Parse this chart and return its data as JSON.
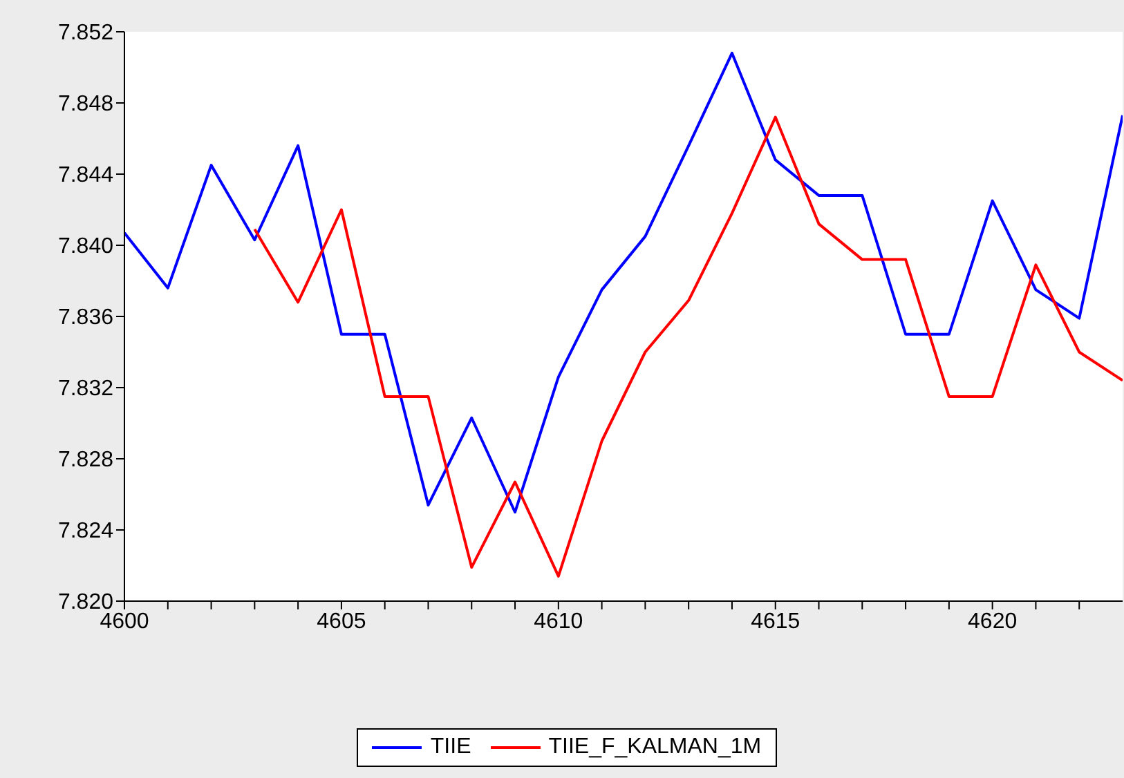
{
  "chart_data": {
    "type": "line",
    "x": [
      4600,
      4601,
      4602,
      4603,
      4604,
      4605,
      4606,
      4607,
      4608,
      4609,
      4610,
      4611,
      4612,
      4613,
      4614,
      4615,
      4616,
      4617,
      4618,
      4619,
      4620,
      4621,
      4622,
      4623
    ],
    "series": [
      {
        "name": "TIIE",
        "color": "#0000ff",
        "values": [
          7.8407,
          7.8376,
          7.8445,
          7.8403,
          7.8456,
          7.835,
          7.835,
          7.8254,
          7.8303,
          7.825,
          7.8326,
          7.8375,
          7.8405,
          7.8456,
          7.8508,
          7.8448,
          7.8428,
          7.8428,
          7.835,
          7.835,
          7.8425,
          7.8375,
          7.8359,
          7.8473
        ]
      },
      {
        "name": "TIIE_F_KALMAN_1M",
        "color": "#ff0000",
        "values": [
          null,
          null,
          null,
          7.8409,
          7.8368,
          7.842,
          7.8315,
          7.8315,
          7.8219,
          7.8267,
          7.8214,
          7.829,
          7.834,
          7.8369,
          7.8418,
          7.8472,
          7.8412,
          7.8392,
          7.8392,
          7.8315,
          7.8315,
          7.8389,
          7.834,
          7.8324
        ]
      }
    ],
    "xlim": [
      4600,
      4623
    ],
    "xticks": [
      4600,
      {
        "value": 4601,
        "label": null
      },
      {
        "value": 4602,
        "label": null
      },
      {
        "value": 4603,
        "label": null
      },
      {
        "value": 4604,
        "label": null
      },
      4605,
      {
        "value": 4606,
        "label": null
      },
      {
        "value": 4607,
        "label": null
      },
      {
        "value": 4608,
        "label": null
      },
      {
        "value": 4609,
        "label": null
      },
      4610,
      {
        "value": 4611,
        "label": null
      },
      {
        "value": 4612,
        "label": null
      },
      {
        "value": 4613,
        "label": null
      },
      {
        "value": 4614,
        "label": null
      },
      4615,
      {
        "value": 4616,
        "label": null
      },
      {
        "value": 4617,
        "label": null
      },
      {
        "value": 4618,
        "label": null
      },
      {
        "value": 4619,
        "label": null
      },
      4620,
      {
        "value": 4621,
        "label": null
      },
      {
        "value": 4622,
        "label": null
      }
    ],
    "ylim": [
      7.82,
      7.852
    ],
    "yticks": [
      {
        "value": 7.82,
        "label": "7.820"
      },
      {
        "value": 7.824,
        "label": "7.824"
      },
      {
        "value": 7.828,
        "label": "7.828"
      },
      {
        "value": 7.832,
        "label": "7.832"
      },
      {
        "value": 7.836,
        "label": "7.836"
      },
      {
        "value": 7.84,
        "label": "7.840"
      },
      {
        "value": 7.844,
        "label": "7.844"
      },
      {
        "value": 7.848,
        "label": "7.848"
      },
      {
        "value": 7.852,
        "label": "7.852"
      }
    ],
    "legend": "bottom"
  }
}
